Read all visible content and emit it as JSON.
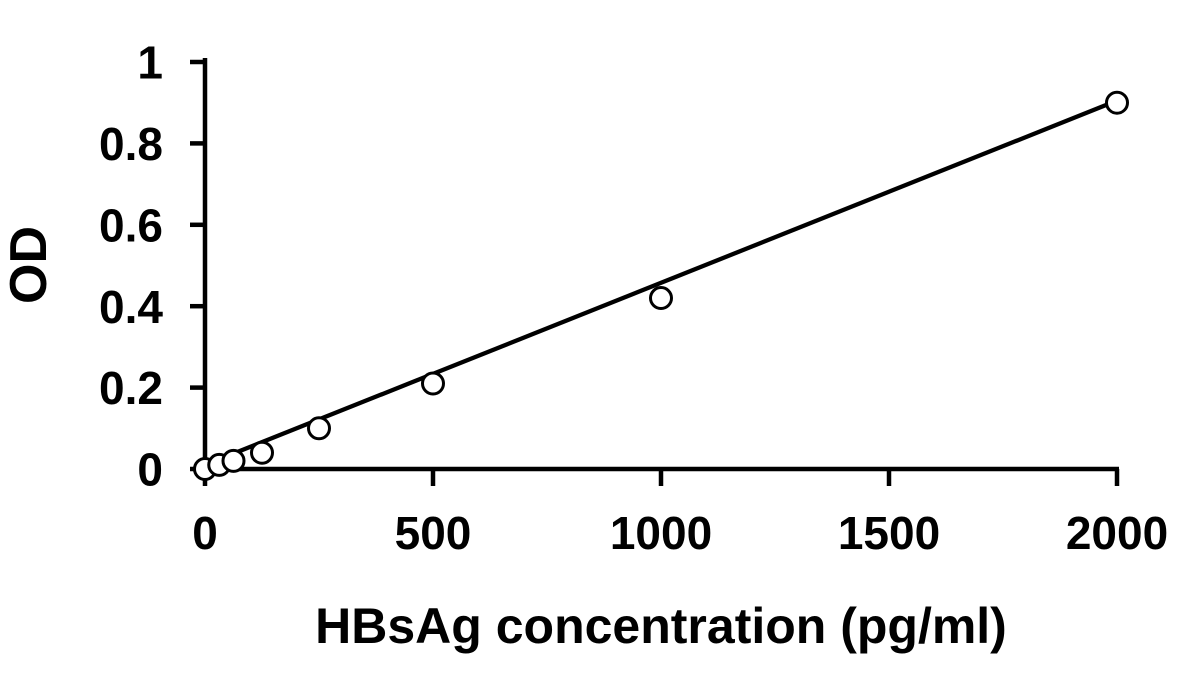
{
  "chart_data": {
    "type": "scatter",
    "title": "",
    "xlabel": "HBsAg concentration (pg/ml)",
    "ylabel": "OD",
    "xlim": [
      0,
      2000
    ],
    "ylim": [
      0,
      1
    ],
    "x_ticks": [
      0,
      500,
      1000,
      1500,
      2000
    ],
    "y_ticks": [
      0,
      0.2,
      0.4,
      0.6,
      0.8,
      1
    ],
    "grid": false,
    "legend": false,
    "marker": "open-circle",
    "line_color": "#000000",
    "marker_color": "#000000",
    "background_color": "#ffffff",
    "points": [
      {
        "x": 0,
        "y": 0
      },
      {
        "x": 31.25,
        "y": 0.01
      },
      {
        "x": 62.5,
        "y": 0.02
      },
      {
        "x": 125,
        "y": 0.04
      },
      {
        "x": 250,
        "y": 0.1
      },
      {
        "x": 500,
        "y": 0.21
      },
      {
        "x": 1000,
        "y": 0.42
      },
      {
        "x": 2000,
        "y": 0.9
      }
    ],
    "trendline": {
      "x1": 0,
      "y1": 0.01,
      "x2": 2000,
      "y2": 0.905
    }
  }
}
